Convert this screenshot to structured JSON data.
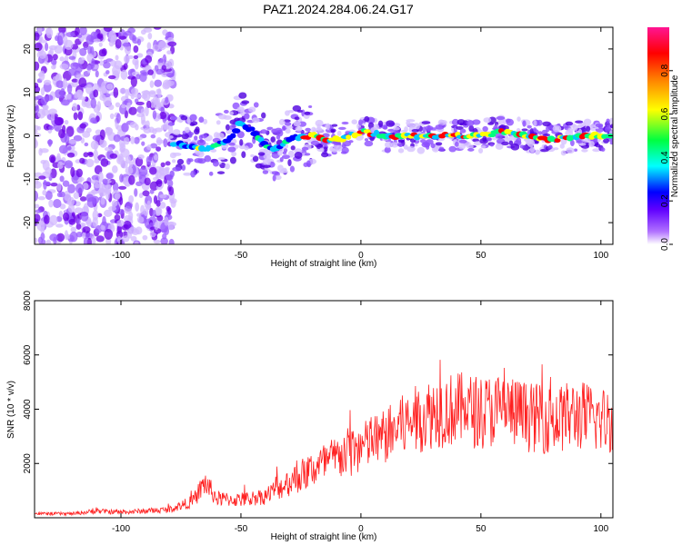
{
  "figure": {
    "title": "PAZ1.2024.284.06.24.G17"
  },
  "chart_data": [
    {
      "type": "heatmap",
      "xlabel": "Height of straight line (km)",
      "ylabel": "Frequency (Hz)",
      "xlim": [
        -136,
        105
      ],
      "ylim": [
        -25,
        25
      ],
      "xticks": [
        -100,
        -50,
        0,
        50,
        100
      ],
      "yticks": [
        -20,
        -10,
        0,
        10,
        20
      ],
      "colorbar": {
        "label": "Normalized spectral amplitude",
        "range": [
          0,
          1
        ],
        "ticks": [
          "0.0",
          "0.2",
          "0.4",
          "0.6",
          "0.8"
        ],
        "colors": [
          "#ffffff",
          "#8a2be2",
          "#0000ff",
          "#00ffff",
          "#00ff00",
          "#ffff00",
          "#ff8000",
          "#ff0000",
          "#ff1493"
        ]
      },
      "ridge": {
        "x": [
          -75,
          -65,
          -55,
          -50,
          -45,
          -40,
          -35,
          -30,
          -25,
          -20,
          -15,
          -10,
          0,
          10,
          20,
          30,
          40,
          50,
          60,
          70,
          80,
          90,
          100,
          105
        ],
        "y": [
          -2,
          -3,
          -1,
          3,
          1,
          -2,
          -3,
          -1,
          0,
          0,
          -1,
          -1,
          1,
          0,
          0,
          0,
          0,
          0,
          1,
          0,
          -1,
          0,
          0,
          0
        ]
      }
    },
    {
      "type": "line",
      "xlabel": "Height of straight line (km)",
      "ylabel": "SNR (10 * v/v)",
      "xlim": [
        -136,
        105
      ],
      "ylim": [
        0,
        8000
      ],
      "xticks": [
        -100,
        -50,
        0,
        50,
        100
      ],
      "yticks": [
        2000,
        4000,
        6000,
        8000
      ],
      "color": "#ff2020",
      "envelope": {
        "x": [
          -136,
          -120,
          -110,
          -100,
          -90,
          -80,
          -70,
          -65,
          -60,
          -50,
          -40,
          -30,
          -20,
          -10,
          0,
          10,
          20,
          30,
          40,
          50,
          60,
          70,
          80,
          90,
          100,
          105
        ],
        "y": [
          150,
          150,
          250,
          200,
          250,
          300,
          600,
          1300,
          700,
          650,
          800,
          1300,
          1800,
          2200,
          2600,
          3000,
          3500,
          3900,
          4000,
          3900,
          4000,
          3700,
          3600,
          3800,
          3600,
          3600
        ]
      }
    }
  ]
}
